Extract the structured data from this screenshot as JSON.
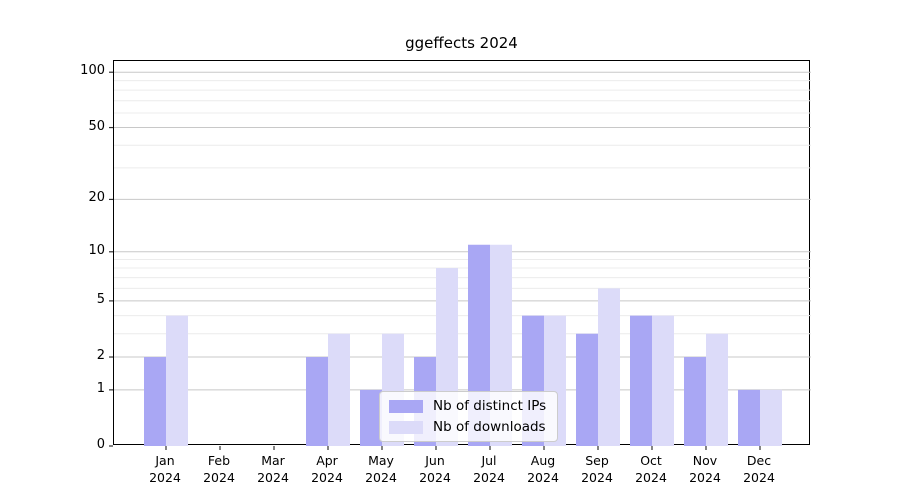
{
  "title": "ggeffects 2024",
  "chart_data": {
    "type": "bar",
    "title": "ggeffects 2024",
    "categories": [
      "Jan",
      "Feb",
      "Mar",
      "Apr",
      "May",
      "Jun",
      "Jul",
      "Aug",
      "Sep",
      "Oct",
      "Nov",
      "Dec"
    ],
    "category_year": "2024",
    "series": [
      {
        "name": "Nb of distinct IPs",
        "color": "#a9a7f4",
        "values": [
          2,
          0,
          0,
          2,
          1,
          2,
          11,
          4,
          3,
          4,
          2,
          1
        ]
      },
      {
        "name": "Nb of downloads",
        "color": "#dcdbf9",
        "values": [
          4,
          0,
          0,
          3,
          3,
          8,
          11,
          4,
          6,
          4,
          3,
          1
        ]
      }
    ],
    "xlabel": "",
    "ylabel": "",
    "y_scale": "log1p",
    "y_ticks": [
      0,
      1,
      2,
      5,
      10,
      20,
      50,
      100
    ],
    "y_minor_ticks": [
      3,
      4,
      6,
      7,
      8,
      9,
      30,
      40,
      60,
      70,
      80,
      90
    ],
    "ylim": [
      0,
      115
    ],
    "grid": "both",
    "legend_position": "lower center inside plot",
    "grid_major_color": "#c8c8c8",
    "grid_minor_color": "#ececec",
    "spine_color": "#000000",
    "tick_color": "#333333"
  }
}
